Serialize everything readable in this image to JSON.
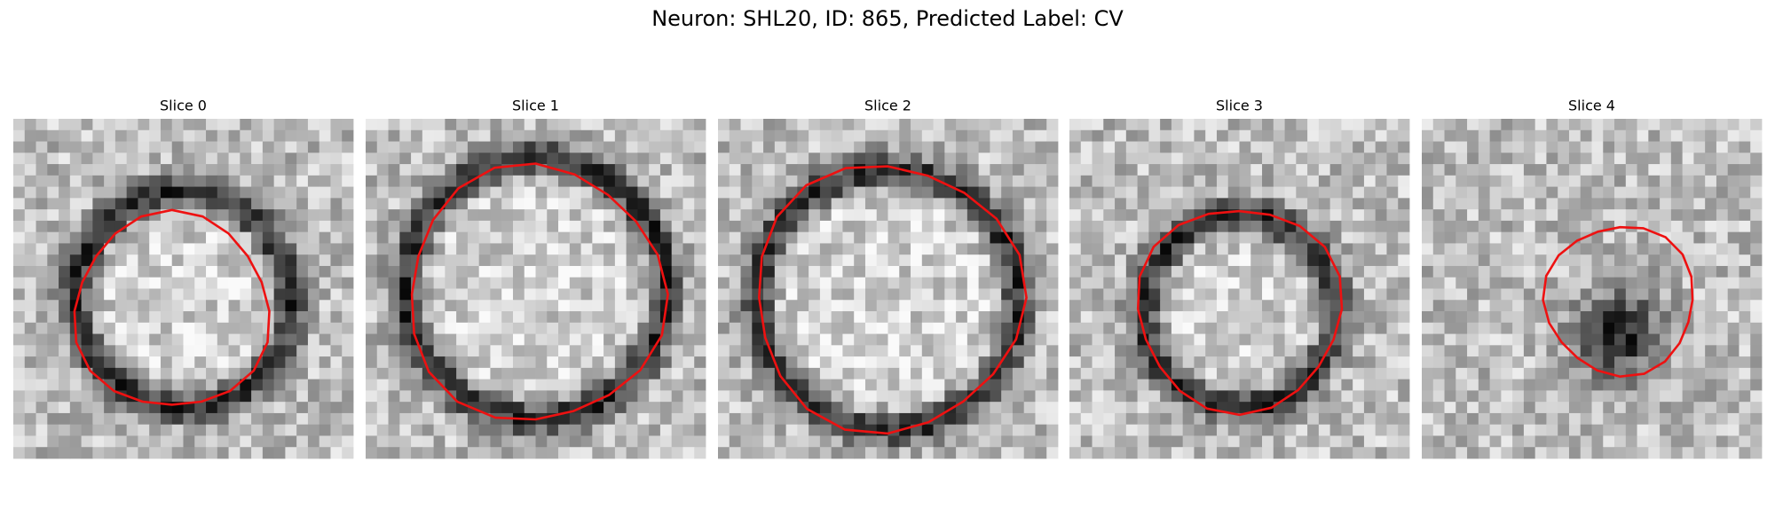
{
  "title": "Neuron: SHL20, ID: 865, Predicted Label: CV",
  "panels": [
    {
      "title": "Slice 0"
    },
    {
      "title": "Slice 1"
    },
    {
      "title": "Slice 2"
    },
    {
      "title": "Slice 3"
    },
    {
      "title": "Slice 4"
    }
  ]
}
